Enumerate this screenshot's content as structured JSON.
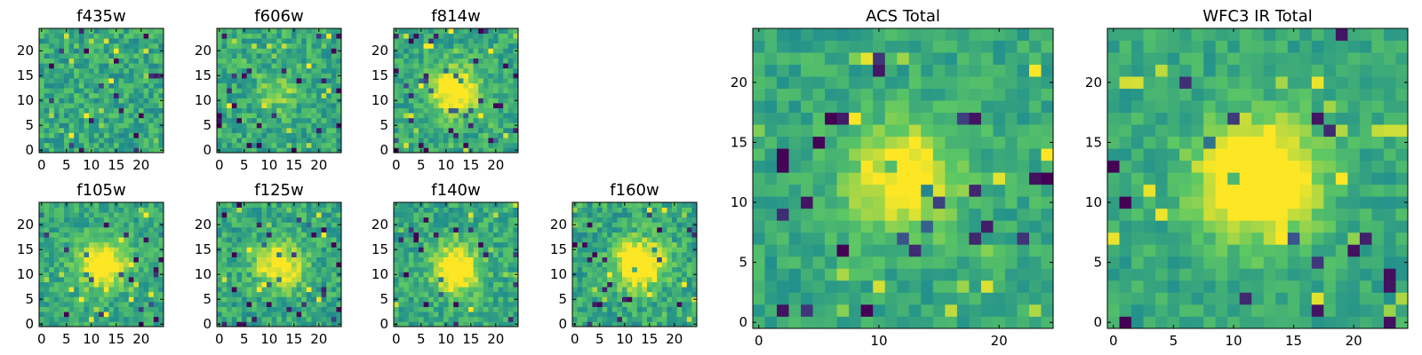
{
  "figure": {
    "colormap": "viridis",
    "colormap_stops": [
      "#440154",
      "#3b528b",
      "#21908d",
      "#5dc863",
      "#fde725"
    ]
  },
  "chart_data": [
    {
      "type": "heatmap",
      "title": "f435w",
      "grid_size": 25,
      "xticks": [
        0,
        5,
        10,
        15,
        20
      ],
      "yticks": [
        0,
        5,
        10,
        15,
        20
      ],
      "xlim": [
        0,
        24
      ],
      "ylim": [
        0,
        24
      ],
      "peak": [
        12,
        12
      ],
      "signal": 0.0,
      "noise": 0.32
    },
    {
      "type": "heatmap",
      "title": "f606w",
      "grid_size": 25,
      "xticks": [
        0,
        5,
        10,
        15,
        20
      ],
      "yticks": [
        0,
        5,
        10,
        15,
        20
      ],
      "xlim": [
        0,
        24
      ],
      "ylim": [
        0,
        24
      ],
      "peak": [
        12,
        12
      ],
      "signal": 0.2,
      "noise": 0.3
    },
    {
      "type": "heatmap",
      "title": "f814w",
      "grid_size": 25,
      "xticks": [
        0,
        5,
        10,
        15,
        20
      ],
      "yticks": [
        0,
        5,
        10,
        15,
        20
      ],
      "xlim": [
        0,
        24
      ],
      "ylim": [
        0,
        24
      ],
      "peak": [
        12,
        12
      ],
      "signal": 0.55,
      "noise": 0.28
    },
    {
      "type": "heatmap",
      "title": "f105w",
      "grid_size": 25,
      "xticks": [
        0,
        5,
        10,
        15,
        20
      ],
      "yticks": [
        0,
        5,
        10,
        15,
        20
      ],
      "xlim": [
        0,
        24
      ],
      "ylim": [
        0,
        24
      ],
      "peak": [
        12,
        12
      ],
      "signal": 0.6,
      "noise": 0.26
    },
    {
      "type": "heatmap",
      "title": "f125w",
      "grid_size": 25,
      "xticks": [
        0,
        5,
        10,
        15,
        20
      ],
      "yticks": [
        0,
        5,
        10,
        15,
        20
      ],
      "xlim": [
        0,
        24
      ],
      "ylim": [
        0,
        24
      ],
      "peak": [
        12,
        12
      ],
      "signal": 0.5,
      "noise": 0.3
    },
    {
      "type": "heatmap",
      "title": "f140w",
      "grid_size": 25,
      "xticks": [
        0,
        5,
        10,
        15,
        20
      ],
      "yticks": [
        0,
        5,
        10,
        15,
        20
      ],
      "xlim": [
        0,
        24
      ],
      "ylim": [
        0,
        24
      ],
      "peak": [
        12,
        11
      ],
      "signal": 0.6,
      "noise": 0.28
    },
    {
      "type": "heatmap",
      "title": "f160w",
      "grid_size": 25,
      "xticks": [
        0,
        5,
        10,
        15,
        20
      ],
      "yticks": [
        0,
        5,
        10,
        15,
        20
      ],
      "xlim": [
        0,
        24
      ],
      "ylim": [
        0,
        24
      ],
      "peak": [
        13,
        12
      ],
      "signal": 0.7,
      "noise": 0.3
    },
    {
      "type": "heatmap",
      "title": "ACS Total",
      "grid_size": 25,
      "xticks": [
        0,
        10,
        20
      ],
      "yticks": [
        0,
        5,
        10,
        15,
        20
      ],
      "xlim": [
        0,
        24
      ],
      "ylim": [
        0,
        24
      ],
      "peak": [
        12,
        12
      ],
      "signal": 0.45,
      "noise": 0.22
    },
    {
      "type": "heatmap",
      "title": "WFC3 IR Total",
      "grid_size": 25,
      "xticks": [
        0,
        5,
        10,
        15,
        20
      ],
      "yticks": [
        0,
        5,
        10,
        15,
        20
      ],
      "xlim": [
        0,
        24
      ],
      "ylim": [
        0,
        24
      ],
      "peak": [
        12,
        12
      ],
      "signal": 0.75,
      "noise": 0.2
    }
  ]
}
